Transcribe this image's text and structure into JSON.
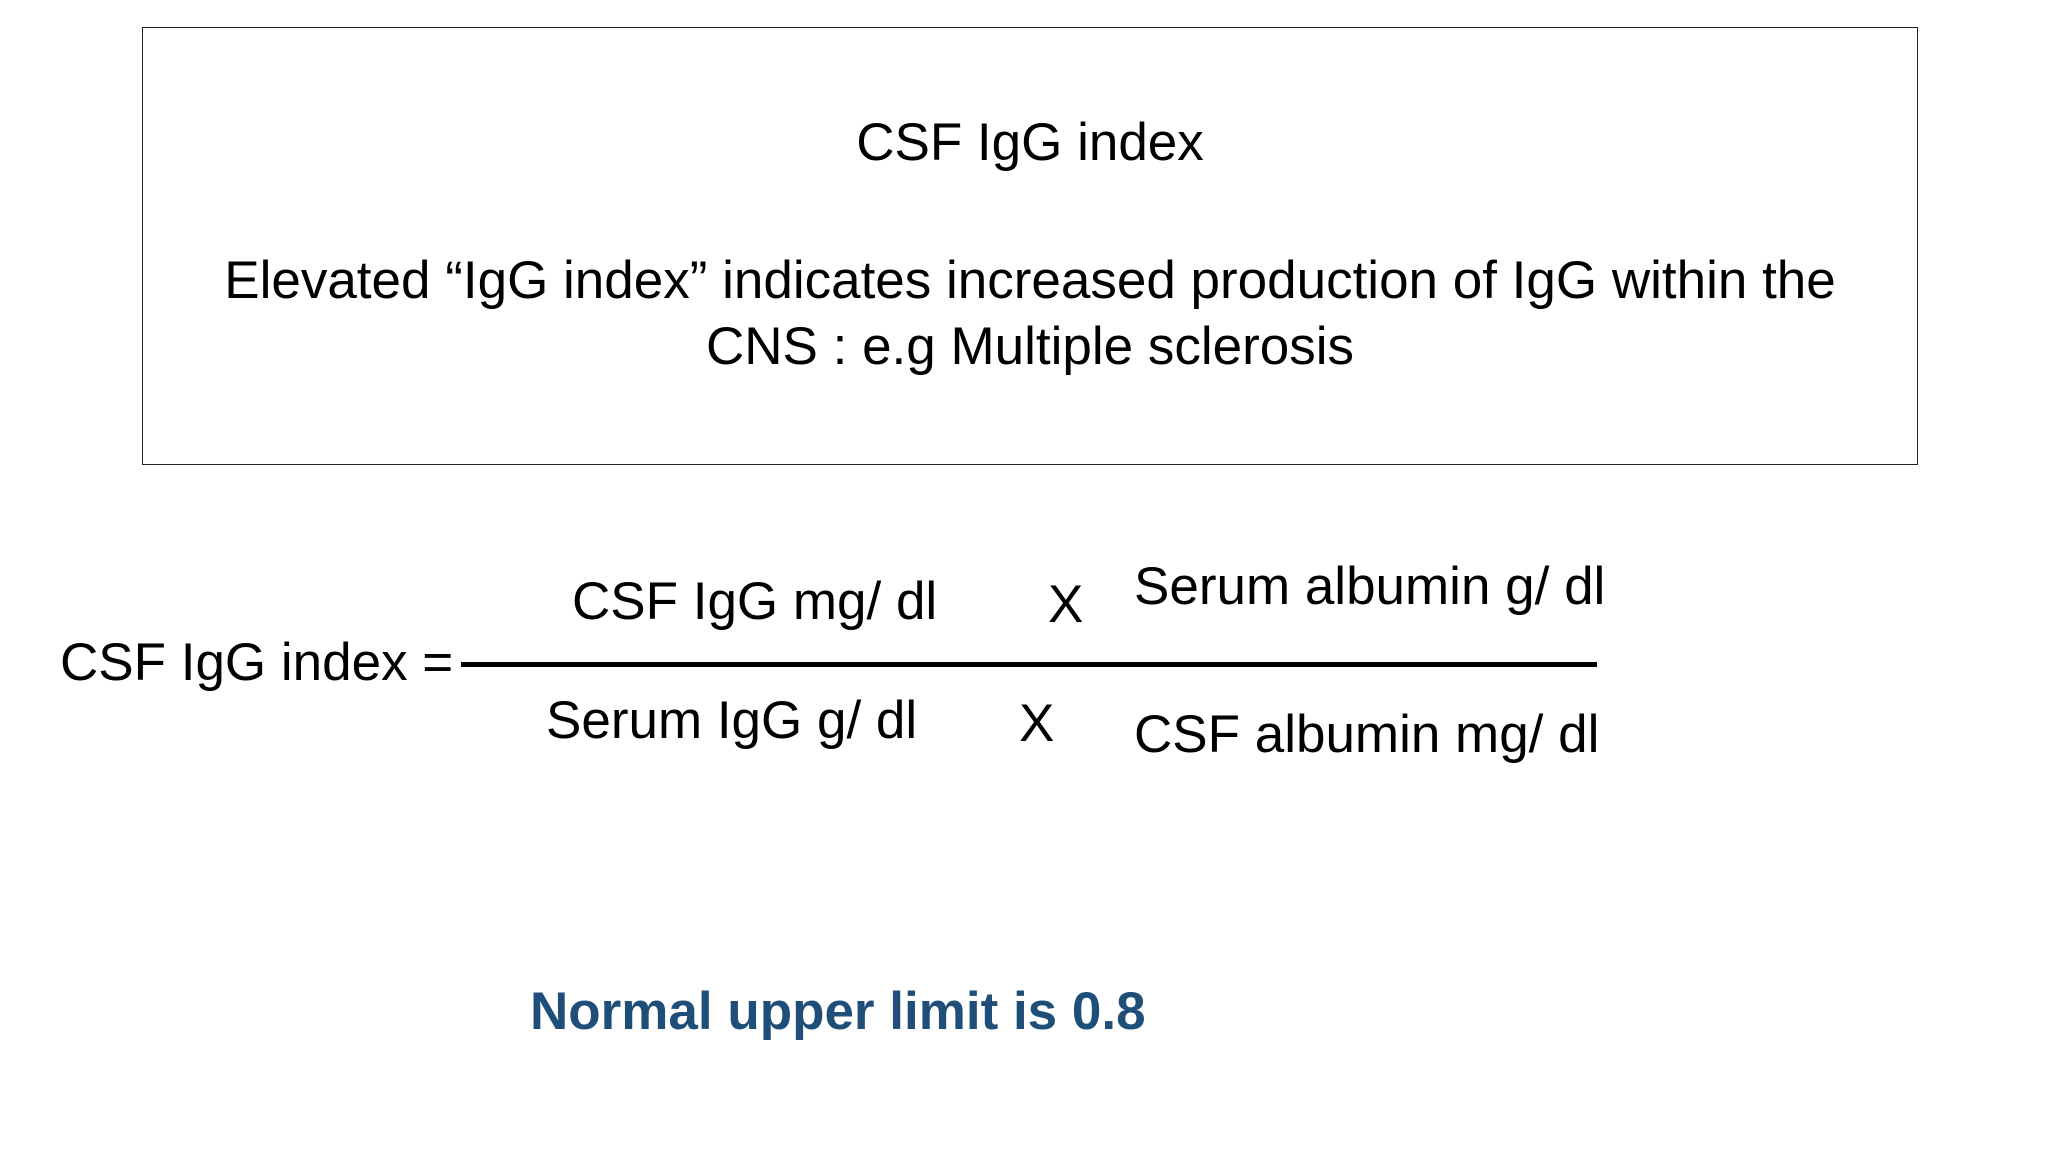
{
  "info_box": {
    "title": "CSF IgG index",
    "description_line1": "Elevated “IgG index” indicates increased production of IgG within the",
    "description_line2": "CNS :  e.g Multiple sclerosis"
  },
  "formula": {
    "lhs": "CSF IgG index  =",
    "numerator_left": "CSF IgG mg/ dl",
    "numerator_operator": "X",
    "numerator_right": "Serum albumin g/ dl",
    "denominator_left": "Serum IgG g/ dl",
    "denominator_operator": "X",
    "denominator_right": "CSF albumin mg/ dl"
  },
  "note": {
    "text": "Normal upper limit is 0.8",
    "color": "#1F4E79"
  }
}
